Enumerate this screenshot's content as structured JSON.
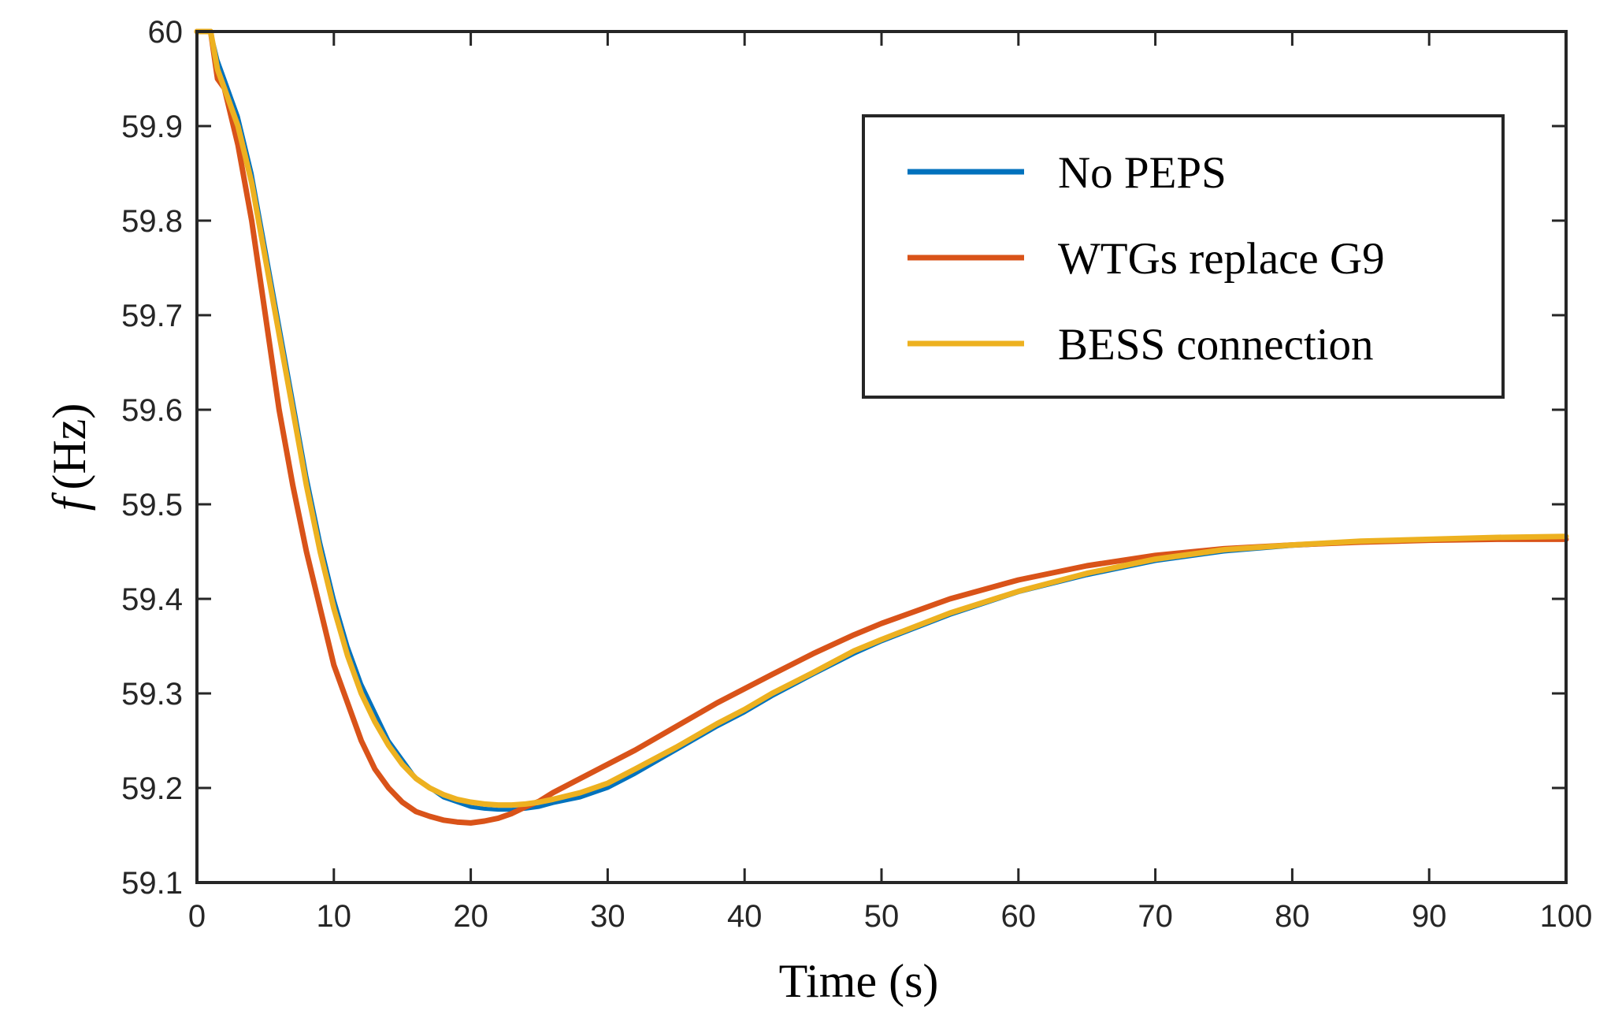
{
  "chart_data": {
    "type": "line",
    "title": "",
    "xlabel": "Time (s)",
    "ylabel_symbol": "f",
    "ylabel_unit": "(Hz)",
    "xlim": [
      0,
      100
    ],
    "ylim": [
      59.1,
      60
    ],
    "grid": false,
    "legend_position": "top-right",
    "xticks": [
      0,
      10,
      20,
      30,
      40,
      50,
      60,
      70,
      80,
      90,
      100
    ],
    "xtick_labels": [
      "0",
      "10",
      "20",
      "30",
      "40",
      "50",
      "60",
      "70",
      "80",
      "90",
      "100"
    ],
    "yticks": [
      59.1,
      59.2,
      59.3,
      59.4,
      59.5,
      59.6,
      59.7,
      59.8,
      59.9,
      60
    ],
    "ytick_labels": [
      "59.1",
      "59.2",
      "59.3",
      "59.4",
      "59.5",
      "59.6",
      "59.7",
      "59.8",
      "59.9",
      "60"
    ],
    "series": [
      {
        "name": "No PEPS",
        "color": "#0072BD",
        "x": [
          0,
          1,
          1.5,
          2,
          3,
          4,
          5,
          6,
          7,
          8,
          9,
          10,
          11,
          12,
          13,
          14,
          15,
          16,
          17,
          18,
          19,
          20,
          21,
          22,
          23,
          24,
          25,
          26,
          28,
          30,
          32,
          35,
          38,
          40,
          42,
          45,
          48,
          50,
          55,
          60,
          65,
          70,
          75,
          80,
          85,
          90,
          95,
          100
        ],
        "y": [
          60,
          60,
          59.97,
          59.95,
          59.91,
          59.85,
          59.77,
          59.69,
          59.61,
          59.53,
          59.46,
          59.4,
          59.35,
          59.31,
          59.28,
          59.25,
          59.23,
          59.21,
          59.2,
          59.19,
          59.185,
          59.18,
          59.178,
          59.177,
          59.177,
          59.178,
          59.18,
          59.184,
          59.19,
          59.2,
          59.215,
          59.24,
          59.265,
          59.28,
          59.297,
          59.32,
          59.342,
          59.355,
          59.383,
          59.407,
          59.425,
          59.44,
          59.45,
          59.456,
          59.46,
          59.462,
          59.464,
          59.465
        ]
      },
      {
        "name": "WTGs replace G9",
        "color": "#D95319",
        "x": [
          0,
          1,
          1.5,
          2,
          3,
          4,
          5,
          6,
          7,
          8,
          9,
          10,
          11,
          12,
          13,
          14,
          15,
          16,
          17,
          18,
          19,
          20,
          21,
          22,
          23,
          24,
          25,
          26,
          28,
          30,
          32,
          35,
          38,
          40,
          42,
          45,
          48,
          50,
          55,
          60,
          65,
          70,
          75,
          80,
          85,
          90,
          95,
          100
        ],
        "y": [
          60,
          60,
          59.95,
          59.94,
          59.88,
          59.8,
          59.7,
          59.6,
          59.52,
          59.45,
          59.39,
          59.33,
          59.29,
          59.25,
          59.22,
          59.2,
          59.185,
          59.175,
          59.17,
          59.166,
          59.164,
          59.163,
          59.165,
          59.168,
          59.173,
          59.18,
          59.186,
          59.195,
          59.21,
          59.225,
          59.24,
          59.265,
          59.29,
          59.305,
          59.32,
          59.342,
          59.362,
          59.374,
          59.4,
          59.42,
          59.435,
          59.446,
          59.453,
          59.457,
          59.46,
          59.462,
          59.463,
          59.463
        ]
      },
      {
        "name": "BESS connection",
        "color": "#EDB120",
        "x": [
          0,
          1,
          1.5,
          2,
          3,
          4,
          5,
          6,
          7,
          8,
          9,
          10,
          11,
          12,
          13,
          14,
          15,
          16,
          17,
          18,
          19,
          20,
          21,
          22,
          23,
          24,
          25,
          26,
          28,
          30,
          32,
          35,
          38,
          40,
          42,
          45,
          48,
          50,
          55,
          60,
          65,
          70,
          75,
          80,
          85,
          90,
          95,
          100
        ],
        "y": [
          60,
          60,
          59.96,
          59.94,
          59.9,
          59.84,
          59.76,
          59.68,
          59.6,
          59.52,
          59.45,
          59.39,
          59.34,
          59.3,
          59.27,
          59.245,
          59.225,
          59.21,
          59.2,
          59.193,
          59.188,
          59.185,
          59.183,
          59.182,
          59.182,
          59.183,
          59.185,
          59.188,
          59.195,
          59.205,
          59.22,
          59.243,
          59.268,
          59.283,
          59.3,
          59.322,
          59.345,
          59.357,
          59.385,
          59.408,
          59.427,
          59.442,
          59.452,
          59.457,
          59.461,
          59.463,
          59.465,
          59.466
        ]
      }
    ]
  }
}
